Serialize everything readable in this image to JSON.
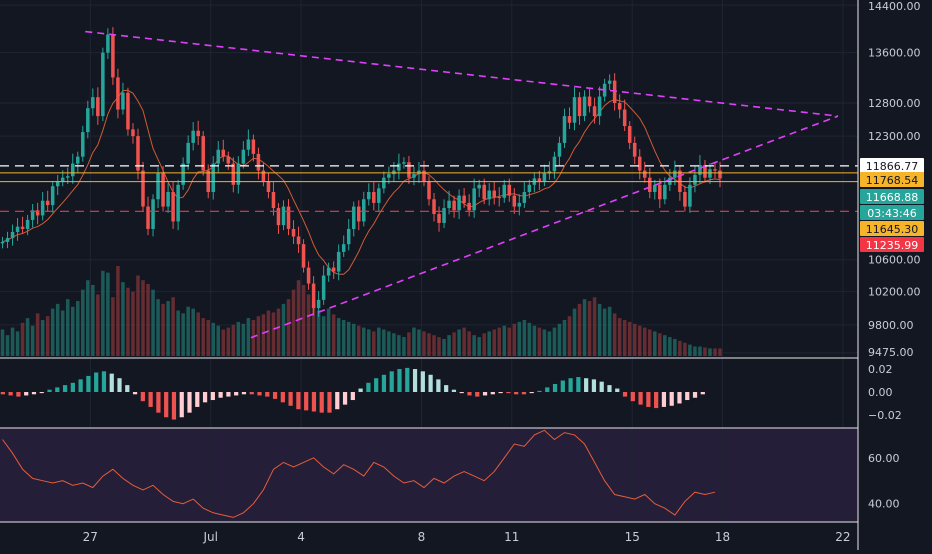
{
  "chart_data": {
    "type": "candlestick",
    "title": "",
    "interval": "4h",
    "time_axis": {
      "ticks": [
        {
          "label": "27",
          "date": "2019-06-27"
        },
        {
          "label": "Jul",
          "date": "2019-07-01"
        },
        {
          "label": "4",
          "date": "2019-07-04"
        },
        {
          "label": "8",
          "date": "2019-07-08"
        },
        {
          "label": "11",
          "date": "2019-07-11"
        },
        {
          "label": "15",
          "date": "2019-07-15"
        },
        {
          "label": "18",
          "date": "2019-07-18"
        },
        {
          "label": "22",
          "date": "2019-07-22"
        }
      ],
      "range": [
        "2019-06-24",
        "2019-07-22T12:00"
      ]
    },
    "price_axis": {
      "ticks": [
        "14400.00",
        "13600.00",
        "12800.00",
        "12300.00",
        "10600.00",
        "10200.00",
        "9800.00",
        "9475.00"
      ],
      "range": [
        9440,
        14420
      ]
    },
    "candles_close": [
      10830,
      10880,
      10960,
      11030,
      11000,
      11120,
      11250,
      11180,
      11380,
      11320,
      11580,
      11650,
      11700,
      11720,
      11900,
      12000,
      12360,
      12720,
      12890,
      12600,
      13600,
      13900,
      13200,
      12700,
      12960,
      12400,
      12300,
      11800,
      11300,
      11000,
      11400,
      11760,
      11300,
      11500,
      11100,
      11600,
      11900,
      12200,
      12380,
      12300,
      11800,
      11500,
      11900,
      12100,
      12000,
      11900,
      11600,
      11900,
      12100,
      12250,
      12040,
      11800,
      11650,
      11500,
      11280,
      11050,
      11300,
      11000,
      10900,
      10800,
      10500,
      10300,
      10000,
      10100,
      10400,
      10500,
      10450,
      10700,
      10800,
      11000,
      11300,
      11100,
      11400,
      11500,
      11350,
      11550,
      11700,
      11750,
      11800,
      11900,
      11920,
      11700,
      11750,
      11800,
      11650,
      11400,
      11200,
      11080,
      11280,
      11380,
      11250,
      11450,
      11350,
      11250,
      11550,
      11600,
      11400,
      11520,
      11430,
      11420,
      11600,
      11450,
      11300,
      11350,
      11500,
      11600,
      11690,
      11650,
      11760,
      11790,
      12000,
      12200,
      12600,
      12500,
      12890,
      12600,
      12900,
      12750,
      12600,
      12900,
      13100,
      13150,
      12800,
      12700,
      12450,
      12200,
      12000,
      11800,
      11700,
      11500,
      11600,
      11400,
      11600,
      11700,
      11800,
      11500,
      11300,
      11600,
      11740,
      11880,
      11700,
      11820,
      11800,
      11690
    ],
    "candles_note": "approximate 4h closes from 2019-06-24 to 2019-07-12",
    "volume": [
      28,
      22,
      30,
      26,
      35,
      40,
      32,
      45,
      38,
      42,
      50,
      55,
      48,
      60,
      52,
      58,
      70,
      80,
      75,
      65,
      90,
      88,
      62,
      95,
      78,
      72,
      68,
      85,
      80,
      76,
      70,
      60,
      55,
      58,
      62,
      48,
      45,
      52,
      50,
      46,
      40,
      38,
      35,
      32,
      28,
      30,
      33,
      36,
      34,
      40,
      38,
      42,
      44,
      48,
      46,
      50,
      55,
      60,
      70,
      80,
      75,
      65,
      55,
      48,
      42,
      50,
      44,
      40,
      38,
      36,
      34,
      32,
      30,
      28,
      26,
      30,
      28,
      26,
      24,
      22,
      20,
      25,
      30,
      28,
      26,
      24,
      22,
      20,
      18,
      22,
      25,
      28,
      30,
      26,
      22,
      20,
      24,
      26,
      28,
      30,
      32,
      30,
      34,
      36,
      38,
      35,
      32,
      30,
      28,
      26,
      30,
      34,
      38,
      42,
      50,
      55,
      60,
      58,
      62,
      55,
      50,
      52,
      45,
      40,
      38,
      36,
      34,
      32,
      30,
      28,
      26,
      24,
      22,
      20,
      18,
      16,
      14,
      12,
      10,
      10,
      9,
      8,
      8,
      8
    ],
    "price_lines": [
      {
        "label": "11866.77",
        "value": 11866.77,
        "color": "#ffffff",
        "style": "dashed"
      },
      {
        "label": "11768.54",
        "value": 11768.54,
        "color": "#f6b42a",
        "style": "solid"
      },
      {
        "label": "11668.88",
        "value": 11668.88,
        "color": "#26a69a",
        "style": "solid"
      },
      {
        "label": "03:43:46",
        "value": null,
        "color": "#26a69a",
        "style": "countdown"
      },
      {
        "label": "11645.30",
        "value": 11645.3,
        "color": "#f6b42a",
        "style": "solid"
      },
      {
        "label": "11235.99",
        "value": 11235.99,
        "color": "#f23645",
        "style": "dashed"
      }
    ],
    "trendlines": [
      {
        "from": {
          "date": "2019-06-26T20:00",
          "price": 13950
        },
        "to": {
          "date": "2019-07-21T20:00",
          "price": 12600
        },
        "color": "#e040fb"
      },
      {
        "from": {
          "date": "2019-07-02T08:00",
          "price": 9650
        },
        "to": {
          "date": "2019-07-21T20:00",
          "price": 12600
        },
        "color": "#e040fb"
      }
    ],
    "macd": {
      "ticks": [
        "0.02",
        "0.00",
        "−0.02"
      ],
      "range": [
        -0.027,
        0.027
      ],
      "histogram": [
        -0.002,
        -0.003,
        -0.004,
        -0.003,
        -0.002,
        -0.001,
        0.002,
        0.004,
        0.006,
        0.008,
        0.011,
        0.014,
        0.017,
        0.018,
        0.016,
        0.012,
        0.006,
        -0.002,
        -0.008,
        -0.013,
        -0.018,
        -0.022,
        -0.024,
        -0.022,
        -0.018,
        -0.013,
        -0.009,
        -0.007,
        -0.005,
        -0.004,
        -0.003,
        -0.002,
        -0.002,
        -0.003,
        -0.004,
        -0.006,
        -0.009,
        -0.012,
        -0.015,
        -0.016,
        -0.017,
        -0.018,
        -0.018,
        -0.015,
        -0.011,
        -0.007,
        0.003,
        0.008,
        0.012,
        0.015,
        0.018,
        0.02,
        0.021,
        0.02,
        0.018,
        0.015,
        0.011,
        0.006,
        0.002,
        -0.001,
        -0.003,
        -0.004,
        -0.003,
        -0.002,
        -0.001,
        -0.001,
        -0.002,
        -0.002,
        -0.001,
        0.001,
        0.004,
        0.007,
        0.01,
        0.012,
        0.013,
        0.012,
        0.011,
        0.009,
        0.006,
        0.003,
        -0.004,
        -0.008,
        -0.011,
        -0.013,
        -0.014,
        -0.013,
        -0.012,
        -0.01,
        -0.007,
        -0.005,
        -0.002
      ]
    },
    "rsi": {
      "ticks": [
        "60.00",
        "40.00"
      ],
      "range": [
        32,
        73
      ],
      "values": [
        68,
        62,
        55,
        51,
        50,
        49,
        50,
        48,
        49,
        47,
        52,
        55,
        51,
        48,
        46,
        48,
        44,
        41,
        40,
        42,
        38,
        36,
        35,
        34,
        36,
        40,
        46,
        55,
        58,
        56,
        58,
        60,
        56,
        53,
        57,
        55,
        52,
        58,
        56,
        52,
        49,
        50,
        47,
        51,
        49,
        52,
        54,
        52,
        50,
        54,
        60,
        66,
        65,
        70,
        72,
        68,
        71,
        70,
        66,
        58,
        50,
        44,
        43,
        42,
        44,
        40,
        38,
        35,
        41,
        45,
        44,
        45
      ]
    }
  }
}
